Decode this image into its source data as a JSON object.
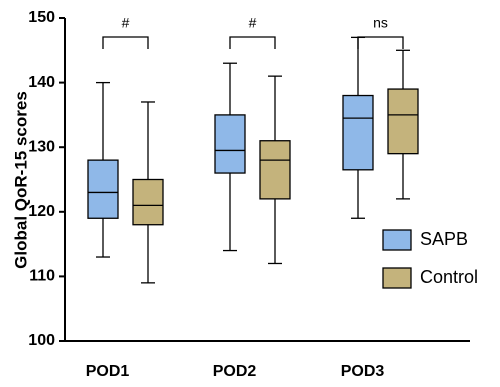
{
  "chart_data": {
    "type": "box",
    "y_label": "Global QoR-15 scores",
    "categories": [
      "POD1",
      "POD2",
      "POD3"
    ],
    "series": [
      {
        "name": "SAPB",
        "color": "#8fb8e8",
        "boxes": [
          {
            "min": 113,
            "q1": 119,
            "median": 123,
            "q3": 128,
            "max": 140
          },
          {
            "min": 114,
            "q1": 126,
            "median": 129.5,
            "q3": 135,
            "max": 143
          },
          {
            "min": 119,
            "q1": 126.5,
            "median": 134.5,
            "q3": 138,
            "max": 147
          }
        ]
      },
      {
        "name": "Control",
        "color": "#c4b37c",
        "boxes": [
          {
            "min": 109,
            "q1": 118,
            "median": 121,
            "q3": 125,
            "max": 137
          },
          {
            "min": 112,
            "q1": 122,
            "median": 128,
            "q3": 131,
            "max": 141
          },
          {
            "min": 122,
            "q1": 129,
            "median": 135,
            "q3": 139,
            "max": 145
          }
        ]
      }
    ],
    "annotations": [
      "#",
      "#",
      "ns"
    ],
    "ylim": [
      100,
      150
    ],
    "yticks": [
      100,
      110,
      120,
      130,
      140,
      150
    ]
  }
}
